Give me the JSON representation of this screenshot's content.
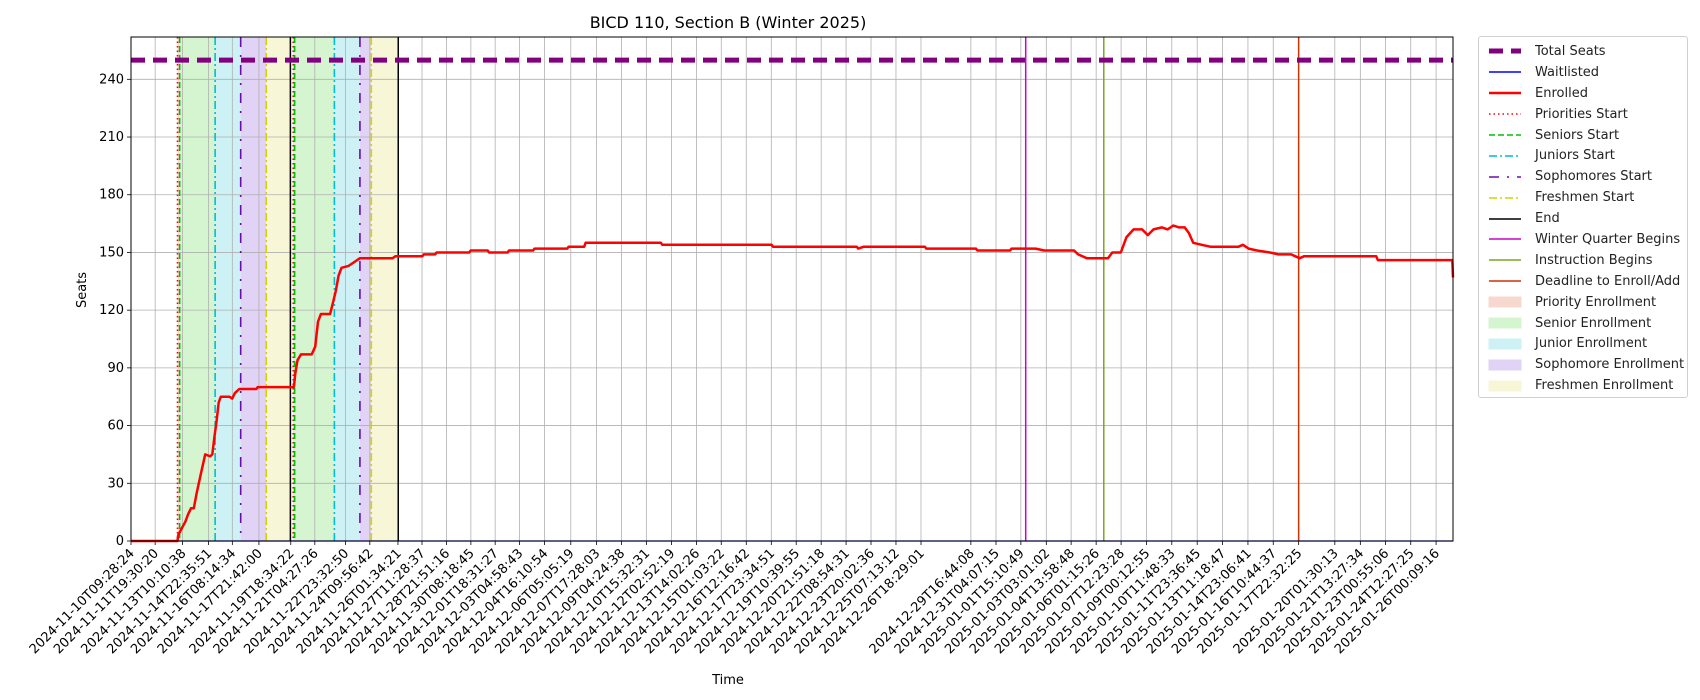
{
  "chart_data": {
    "type": "line",
    "title": "BICD 110, Section B (Winter 2025)",
    "xlabel": "Time",
    "ylabel": "Seats",
    "ylim": [
      0,
      262
    ],
    "yticks": [
      0,
      30,
      60,
      90,
      120,
      150,
      180,
      210,
      240
    ],
    "grid": true,
    "legend_placement": "outside-right",
    "xlim": [
      "2024-11-10T09:28:24",
      "2025-01-27T00:00:00"
    ],
    "xtick_labels": [
      "2024-11-10T09:28:24",
      "2024-11-11T19:30:20",
      "2024-11-13T10:10:38",
      "2024-11-14T22:35:51",
      "2024-11-16T08:14:34",
      "2024-11-17T21:42:00",
      "2024-11-19T18:34:22",
      "2024-11-21T04:27:26",
      "2024-11-22T23:32:50",
      "2024-11-24T09:56:42",
      "2024-11-26T01:34:21",
      "2024-11-27T11:28:37",
      "2024-11-28T21:51:16",
      "2024-11-30T08:18:45",
      "2024-12-01T18:31:27",
      "2024-12-03T04:58:43",
      "2024-12-04T16:10:54",
      "2024-12-06T05:05:19",
      "2024-12-07T17:28:03",
      "2024-12-09T04:24:38",
      "2024-12-10T15:32:31",
      "2024-12-12T02:52:19",
      "2024-12-13T14:02:26",
      "2024-12-15T01:03:22",
      "2024-12-16T12:16:42",
      "2024-12-17T23:34:51",
      "2024-12-19T10:39:55",
      "2024-12-20T21:51:18",
      "2024-12-22T08:54:31",
      "2024-12-23T20:02:36",
      "2024-12-25T07:13:12",
      "2024-12-26T18:29:01",
      "2024-12-29T16:44:08",
      "2024-12-31T04:07:15",
      "2025-01-01T15:10:49",
      "2025-01-03T03:01:02",
      "2025-01-04T13:58:48",
      "2025-01-06T01:15:26",
      "2025-01-07T12:23:28",
      "2025-01-09T00:12:55",
      "2025-01-10T11:48:33",
      "2025-01-11T23:36:45",
      "2025-01-13T11:18:47",
      "2025-01-14T23:06:41",
      "2025-01-16T10:44:37",
      "2025-01-17T22:32:25",
      "2025-01-20T01:30:13",
      "2025-01-21T13:27:34",
      "2025-01-23T00:55:06",
      "2025-01-24T12:27:25",
      "2025-01-26T00:09:16"
    ],
    "series": [
      {
        "name": "Total Seats",
        "color": "#800080",
        "style": "dashed-thick",
        "points": [
          [
            "2024-11-10T09:28:24",
            250
          ],
          [
            "2025-01-27T00:00:00",
            250
          ]
        ]
      },
      {
        "name": "Waitlisted",
        "color": "#0000ff",
        "style": "solid",
        "points": [
          [
            "2024-11-10T09:28:24",
            0
          ],
          [
            "2025-01-27T00:00:00",
            0
          ]
        ]
      },
      {
        "name": "Enrolled",
        "color": "#ff0000",
        "style": "solid-thick",
        "points": [
          [
            "2024-11-10T09:28:24",
            0
          ],
          [
            "2024-11-13T03:00:00",
            0
          ],
          [
            "2024-11-13T04:00:00",
            3
          ],
          [
            "2024-11-13T08:00:00",
            6
          ],
          [
            "2024-11-13T14:00:00",
            10
          ],
          [
            "2024-11-13T18:00:00",
            14
          ],
          [
            "2024-11-13T22:00:00",
            17
          ],
          [
            "2024-11-14T02:00:00",
            17
          ],
          [
            "2024-11-14T06:00:00",
            25
          ],
          [
            "2024-11-14T12:00:00",
            35
          ],
          [
            "2024-11-14T18:00:00",
            45
          ],
          [
            "2024-11-15T01:00:00",
            44
          ],
          [
            "2024-11-15T04:00:00",
            45
          ],
          [
            "2024-11-15T07:00:00",
            54
          ],
          [
            "2024-11-15T10:00:00",
            62
          ],
          [
            "2024-11-15T13:00:00",
            72
          ],
          [
            "2024-11-15T16:00:00",
            75
          ],
          [
            "2024-11-16T04:00:00",
            75
          ],
          [
            "2024-11-16T08:00:00",
            74
          ],
          [
            "2024-11-16T12:00:00",
            77
          ],
          [
            "2024-11-16T18:00:00",
            79
          ],
          [
            "2024-11-17T18:00:00",
            79
          ],
          [
            "2024-11-17T20:00:00",
            80
          ],
          [
            "2024-11-19T23:00:00",
            80
          ],
          [
            "2024-11-20T01:00:00",
            87
          ],
          [
            "2024-11-20T04:00:00",
            94
          ],
          [
            "2024-11-20T09:00:00",
            97
          ],
          [
            "2024-11-21T00:00:00",
            97
          ],
          [
            "2024-11-21T05:00:00",
            101
          ],
          [
            "2024-11-21T09:00:00",
            114
          ],
          [
            "2024-11-21T13:00:00",
            118
          ],
          [
            "2024-11-22T02:00:00",
            118
          ],
          [
            "2024-11-22T06:00:00",
            124
          ],
          [
            "2024-11-22T10:00:00",
            130
          ],
          [
            "2024-11-22T14:00:00",
            138
          ],
          [
            "2024-11-22T18:00:00",
            142
          ],
          [
            "2024-11-23T04:00:00",
            143
          ],
          [
            "2024-11-23T12:00:00",
            145
          ],
          [
            "2024-11-23T20:00:00",
            147
          ],
          [
            "2024-11-25T18:00:00",
            147
          ],
          [
            "2024-11-25T22:00:00",
            148
          ],
          [
            "2024-11-27T12:00:00",
            148
          ],
          [
            "2024-11-27T14:00:00",
            149
          ],
          [
            "2024-11-28T06:00:00",
            149
          ],
          [
            "2024-11-28T08:00:00",
            150
          ],
          [
            "2024-11-30T06:00:00",
            150
          ],
          [
            "2024-11-30T08:00:00",
            151
          ],
          [
            "2024-12-01T08:00:00",
            151
          ],
          [
            "2024-12-01T10:00:00",
            150
          ],
          [
            "2024-12-02T12:00:00",
            150
          ],
          [
            "2024-12-02T14:00:00",
            151
          ],
          [
            "2024-12-04T00:00:00",
            151
          ],
          [
            "2024-12-04T02:00:00",
            152
          ],
          [
            "2024-12-06T00:00:00",
            152
          ],
          [
            "2024-12-06T02:00:00",
            153
          ],
          [
            "2024-12-07T00:00:00",
            153
          ],
          [
            "2024-12-07T02:00:00",
            155
          ],
          [
            "2024-12-11T12:00:00",
            155
          ],
          [
            "2024-12-11T14:00:00",
            154
          ],
          [
            "2024-12-18T00:00:00",
            154
          ],
          [
            "2024-12-18T02:00:00",
            153
          ],
          [
            "2024-12-23T00:00:00",
            153
          ],
          [
            "2024-12-23T02:00:00",
            152
          ],
          [
            "2024-12-23T10:00:00",
            153
          ],
          [
            "2024-12-27T00:00:00",
            153
          ],
          [
            "2024-12-27T02:00:00",
            152
          ],
          [
            "2024-12-30T00:00:00",
            152
          ],
          [
            "2024-12-30T02:00:00",
            151
          ],
          [
            "2025-01-01T00:00:00",
            151
          ],
          [
            "2025-01-01T02:00:00",
            152
          ],
          [
            "2025-01-02T12:00:00",
            152
          ],
          [
            "2025-01-03T00:00:00",
            151
          ],
          [
            "2025-01-04T18:00:00",
            151
          ],
          [
            "2025-01-05T00:00:00",
            149
          ],
          [
            "2025-01-05T12:00:00",
            147
          ],
          [
            "2025-01-06T18:00:00",
            147
          ],
          [
            "2025-01-07T00:00:00",
            150
          ],
          [
            "2025-01-07T12:00:00",
            150
          ],
          [
            "2025-01-07T20:00:00",
            158
          ],
          [
            "2025-01-08T06:00:00",
            162
          ],
          [
            "2025-01-08T18:00:00",
            162
          ],
          [
            "2025-01-09T02:00:00",
            159
          ],
          [
            "2025-01-09T10:00:00",
            162
          ],
          [
            "2025-01-09T22:00:00",
            163
          ],
          [
            "2025-01-10T06:00:00",
            162
          ],
          [
            "2025-01-10T14:00:00",
            164
          ],
          [
            "2025-01-10T22:00:00",
            163
          ],
          [
            "2025-01-11T06:00:00",
            163
          ],
          [
            "2025-01-11T12:00:00",
            160
          ],
          [
            "2025-01-11T18:00:00",
            155
          ],
          [
            "2025-01-12T06:00:00",
            154
          ],
          [
            "2025-01-12T18:00:00",
            153
          ],
          [
            "2025-01-14T10:00:00",
            153
          ],
          [
            "2025-01-14T16:00:00",
            154
          ],
          [
            "2025-01-15T00:00:00",
            152
          ],
          [
            "2025-01-15T12:00:00",
            151
          ],
          [
            "2025-01-16T06:00:00",
            150
          ],
          [
            "2025-01-16T18:00:00",
            149
          ],
          [
            "2025-01-17T12:00:00",
            149
          ],
          [
            "2025-01-17T18:00:00",
            148
          ],
          [
            "2025-01-18T00:00:00",
            147
          ],
          [
            "2025-01-18T06:00:00",
            148
          ],
          [
            "2025-01-22T12:00:00",
            148
          ],
          [
            "2025-01-22T14:00:00",
            146
          ],
          [
            "2025-01-26T23:00:00",
            146
          ],
          [
            "2025-01-27T00:00:00",
            137
          ]
        ]
      }
    ],
    "vlines": [
      {
        "name": "Priorities Start",
        "color": "#ff0000",
        "style": "dotted",
        "at": [
          "2024-11-13T03:00:00",
          "2024-11-19T22:00:00"
        ]
      },
      {
        "name": "Seniors Start",
        "color": "#00c000",
        "style": "dashed",
        "at": [
          "2024-11-13T06:00:00",
          "2024-11-20T00:00:00"
        ]
      },
      {
        "name": "Juniors Start",
        "color": "#00bcd4",
        "style": "dashdot",
        "at": [
          "2024-11-15T08:00:00",
          "2024-11-22T08:00:00"
        ]
      },
      {
        "name": "Sophomores Start",
        "color": "#6a0dad",
        "style": "dashdotsparse",
        "at": [
          "2024-11-16T20:00:00",
          "2024-11-23T20:00:00"
        ]
      },
      {
        "name": "Freshmen Start",
        "color": "#d4d400",
        "style": "dashdot",
        "at": [
          "2024-11-18T08:00:00",
          "2024-11-24T12:00:00"
        ]
      },
      {
        "name": "End",
        "color": "#000000",
        "style": "solid",
        "at": [
          "2024-11-19T18:00:00",
          "2024-11-26T02:00:00"
        ]
      },
      {
        "name": "Winter Quarter Begins",
        "color": "#cc00cc",
        "style": "solid",
        "at": [
          "2025-01-01T22:00:00"
        ]
      },
      {
        "name": "Instruction Begins",
        "color": "#7aa61f",
        "style": "solid",
        "at": [
          "2025-01-06T12:00:00"
        ]
      },
      {
        "name": "Deadline to Enroll/Add",
        "color": "#cc3300",
        "style": "solid",
        "at": [
          "2025-01-17T22:32:25"
        ]
      }
    ],
    "bands": [
      {
        "name": "Priority Enrollment",
        "color": "#f7d8cf",
        "ranges": [
          [
            "2024-11-13T03:00:00",
            "2024-11-13T06:00:00"
          ],
          [
            "2024-11-19T22:00:00",
            "2024-11-20T00:00:00"
          ]
        ]
      },
      {
        "name": "Senior Enrollment",
        "color": "#d5f5d0",
        "ranges": [
          [
            "2024-11-13T06:00:00",
            "2024-11-15T08:00:00"
          ],
          [
            "2024-11-20T00:00:00",
            "2024-11-22T08:00:00"
          ]
        ]
      },
      {
        "name": "Junior Enrollment",
        "color": "#cdf1f5",
        "ranges": [
          [
            "2024-11-15T08:00:00",
            "2024-11-16T20:00:00"
          ],
          [
            "2024-11-22T08:00:00",
            "2024-11-23T20:00:00"
          ]
        ]
      },
      {
        "name": "Sophomore Enrollment",
        "color": "#e0d3f5",
        "ranges": [
          [
            "2024-11-16T20:00:00",
            "2024-11-18T08:00:00"
          ],
          [
            "2024-11-23T20:00:00",
            "2024-11-24T12:00:00"
          ]
        ]
      },
      {
        "name": "Freshmen Enrollment",
        "color": "#f7f7d7",
        "ranges": [
          [
            "2024-11-18T08:00:00",
            "2024-11-19T18:00:00"
          ],
          [
            "2024-11-24T12:00:00",
            "2024-11-26T02:00:00"
          ]
        ]
      }
    ]
  },
  "legend": [
    {
      "label": "Total Seats",
      "kind": "line",
      "color": "#800080",
      "style": "dashed-thick"
    },
    {
      "label": "Waitlisted",
      "kind": "line",
      "color": "#0000ff",
      "style": "solid"
    },
    {
      "label": "Enrolled",
      "kind": "line",
      "color": "#ff0000",
      "style": "solid-thick"
    },
    {
      "label": "Priorities Start",
      "kind": "line",
      "color": "#ff0000",
      "style": "dotted"
    },
    {
      "label": "Seniors Start",
      "kind": "line",
      "color": "#00c000",
      "style": "dashed"
    },
    {
      "label": "Juniors Start",
      "kind": "line",
      "color": "#00bcd4",
      "style": "dashdot"
    },
    {
      "label": "Sophomores Start",
      "kind": "line",
      "color": "#6a0dad",
      "style": "dashdotsparse"
    },
    {
      "label": "Freshmen Start",
      "kind": "line",
      "color": "#d4d400",
      "style": "dashdot"
    },
    {
      "label": "End",
      "kind": "line",
      "color": "#000000",
      "style": "solid"
    },
    {
      "label": "Winter Quarter Begins",
      "kind": "line",
      "color": "#cc00cc",
      "style": "solid"
    },
    {
      "label": "Instruction Begins",
      "kind": "line",
      "color": "#7aa61f",
      "style": "solid"
    },
    {
      "label": "Deadline to Enroll/Add",
      "kind": "line",
      "color": "#cc3300",
      "style": "solid"
    },
    {
      "label": "Priority Enrollment",
      "kind": "patch",
      "color": "#f7d8cf"
    },
    {
      "label": "Senior Enrollment",
      "kind": "patch",
      "color": "#d5f5d0"
    },
    {
      "label": "Junior Enrollment",
      "kind": "patch",
      "color": "#cdf1f5"
    },
    {
      "label": "Sophomore Enrollment",
      "kind": "patch",
      "color": "#e0d3f5"
    },
    {
      "label": "Freshmen Enrollment",
      "kind": "patch",
      "color": "#f7f7d7"
    }
  ]
}
